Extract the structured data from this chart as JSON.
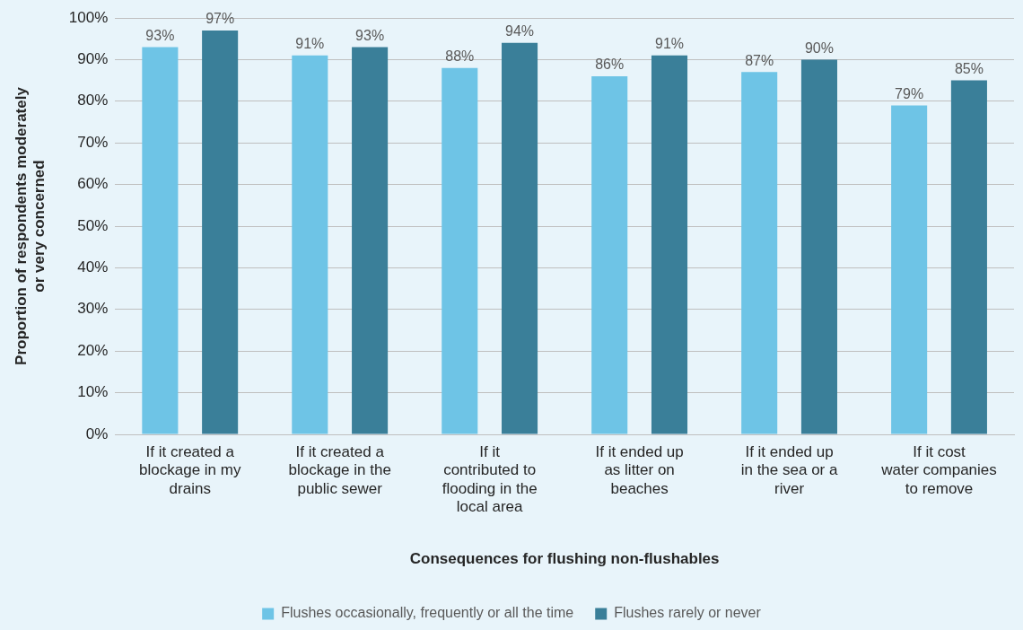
{
  "chart_data": {
    "type": "bar",
    "xlabel": "Consequences for flushing non-flushables",
    "ylabel": "Proportion of respondents moderately\nor very concerned",
    "categories": [
      "If it created a blockage in my drains",
      "If it created a blockage in the public sewer",
      "If it contributed to flooding in the local area",
      "If it ended up as litter on beaches",
      "If it ended up in the sea or a river",
      "If it cost water companies to remove"
    ],
    "series": [
      {
        "name": "Flushes occasionally, frequently or all the time",
        "color": "#6ec4e6",
        "values": [
          93,
          91,
          88,
          86,
          87,
          79
        ],
        "value_labels": [
          "93%",
          "91%",
          "88%",
          "86%",
          "87%",
          "79%"
        ]
      },
      {
        "name": "Flushes rarely or never",
        "color": "#3a7f99",
        "values": [
          97,
          93,
          94,
          91,
          90,
          85
        ],
        "value_labels": [
          "97%",
          "93%",
          "94%",
          "91%",
          "90%",
          "85%"
        ]
      }
    ],
    "ylim": [
      0,
      100
    ],
    "yticks": [
      {
        "value": 0,
        "label": "0%"
      },
      {
        "value": 10,
        "label": "10%"
      },
      {
        "value": 20,
        "label": "20%"
      },
      {
        "value": 30,
        "label": "30%"
      },
      {
        "value": 40,
        "label": "40%"
      },
      {
        "value": 50,
        "label": "50%"
      },
      {
        "value": 60,
        "label": "60%"
      },
      {
        "value": 70,
        "label": "70%"
      },
      {
        "value": 80,
        "label": "80%"
      },
      {
        "value": 90,
        "label": "90%"
      },
      {
        "value": 100,
        "label": "100%"
      }
    ],
    "grid": "y",
    "legend": "bottom"
  }
}
